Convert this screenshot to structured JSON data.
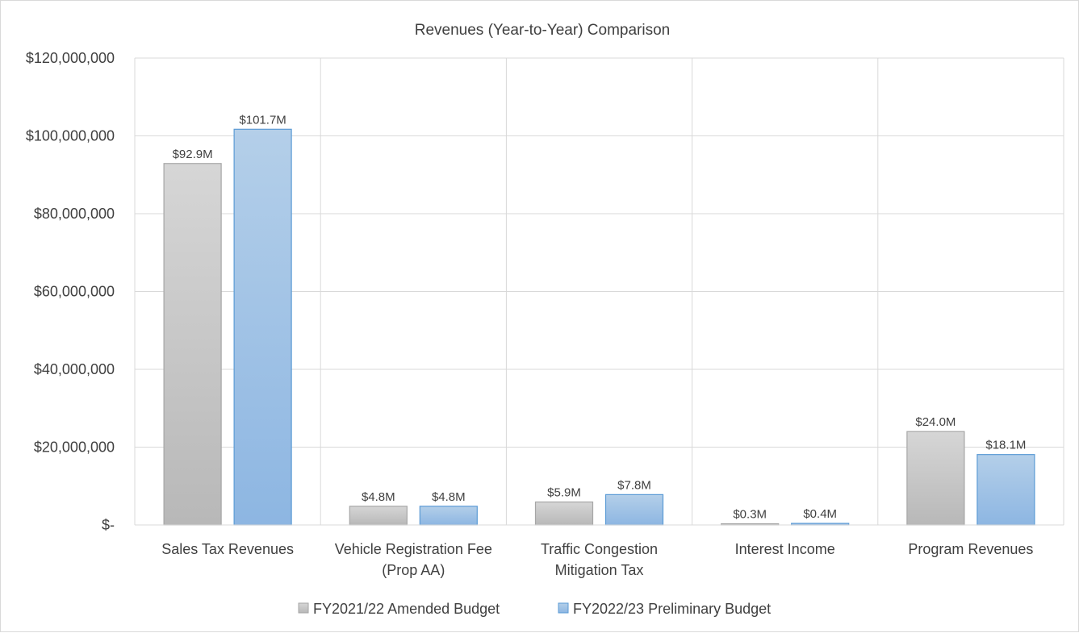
{
  "chart_data": {
    "type": "bar",
    "title": "Revenues  (Year-to-Year)  Comparison",
    "xlabel": "",
    "ylabel": "",
    "categories": [
      [
        "Sales Tax Revenues"
      ],
      [
        "Vehicle Registration Fee",
        "(Prop AA)"
      ],
      [
        "Traffic Congestion",
        "Mitigation Tax"
      ],
      [
        "Interest Income"
      ],
      [
        "Program Revenues"
      ]
    ],
    "series": [
      {
        "name": "FY2021/22 Amended Budget",
        "color": "#c8c8c8",
        "values": [
          92900000,
          4800000,
          5900000,
          300000,
          24000000
        ],
        "labels": [
          "$92.9M",
          "$4.8M",
          "$5.9M",
          "$0.3M",
          "$24.0M"
        ]
      },
      {
        "name": "FY2022/23 Preliminary Budget",
        "color": "#9dc3e6",
        "values": [
          101700000,
          4800000,
          7800000,
          400000,
          18100000
        ],
        "labels": [
          "$101.7M",
          "$4.8M",
          "$7.8M",
          "$0.4M",
          "$18.1M"
        ]
      }
    ],
    "ylim": [
      0,
      120000000
    ],
    "y_ticks": [
      0,
      20000000,
      40000000,
      60000000,
      80000000,
      100000000,
      120000000
    ],
    "y_tick_labels": [
      "$-",
      "$20,000,000",
      "$40,000,000",
      "$60,000,000",
      "$80,000,000",
      "$100,000,000",
      "$120,000,000"
    ],
    "grid": true,
    "legend_position": "bottom"
  }
}
